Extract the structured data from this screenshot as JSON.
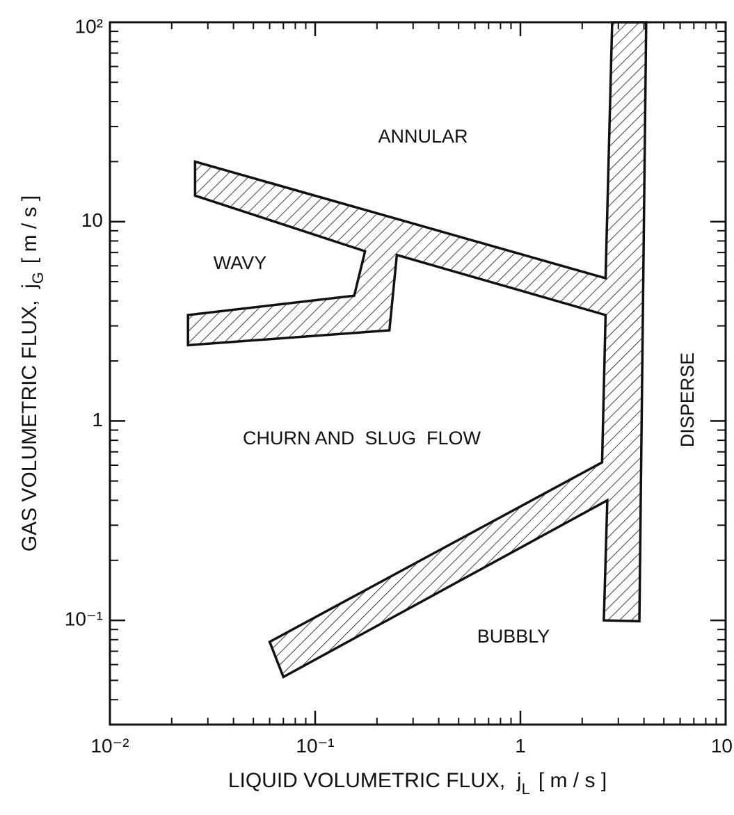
{
  "chart_data": {
    "type": "polygon",
    "xlabel": {
      "text": "LIQUID VOLUMETRIC FLUX,  j",
      "subscript": "L",
      "unit": "[ m / s ]"
    },
    "ylabel": {
      "text": "GAS VOLUMETRIC FLUX,  j",
      "subscript": "G",
      "unit": "[ m / s ]"
    },
    "xscale": "log",
    "yscale": "log",
    "xlim": [
      0.01,
      10
    ],
    "ylim": [
      0.03,
      100
    ],
    "xticks": [
      {
        "value": 0.01,
        "label": "10⁻²"
      },
      {
        "value": 0.1,
        "label": "10⁻¹"
      },
      1,
      10
    ],
    "yticks": [
      {
        "value": 0.1,
        "label": "10⁻¹"
      },
      1,
      10,
      {
        "value": 100,
        "label": "10²"
      }
    ],
    "minor_ticks": true,
    "hatch": true,
    "color": "#111111",
    "series": [
      {
        "x": [
          0.026,
          2.6,
          2.8,
          4.1,
          3.8,
          2.55,
          2.65,
          0.07,
          0.06,
          2.5,
          2.6,
          0.25,
          0.23,
          0.024,
          0.024,
          0.155,
          0.175,
          0.026
        ],
        "y": [
          20,
          5.2,
          100,
          100,
          0.099,
          0.1,
          0.4,
          0.052,
          0.078,
          0.62,
          3.4,
          6.8,
          2.85,
          2.4,
          3.4,
          4.25,
          7.1,
          13.5
        ]
      }
    ],
    "annotations": [
      "ANNULAR",
      "WAVY",
      "CHURN AND  SLUG  FLOW",
      "BUBBLY",
      "DISPERSE"
    ]
  }
}
